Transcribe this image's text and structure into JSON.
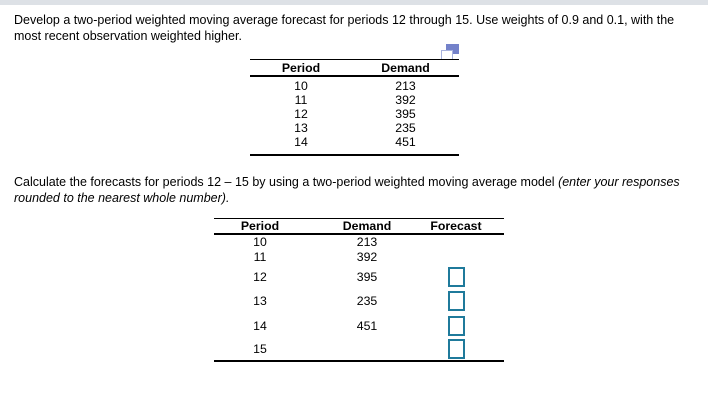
{
  "problem": {
    "statement": "Develop a two-period weighted moving average forecast for periods 12 through 15. Use weights of 0.9 and 0.1, with the most recent observation weighted higher."
  },
  "instruction": {
    "normal": "Calculate the forecasts for periods 12 – 15 by using a two-period weighted moving average model ",
    "italic": "(enter your responses rounded to the nearest whole number)."
  },
  "icons": {
    "copy_table_icon": "copy-table-popout"
  },
  "colors": {
    "answer_box_border": "#1f7a9b",
    "icon_fill": "#7482ca",
    "icon_outline": "#a9b3de",
    "top_bar": "#dde1e6"
  },
  "data_table": {
    "headers": [
      "Period",
      "Demand"
    ],
    "rows": [
      [
        "10",
        "213"
      ],
      [
        "11",
        "392"
      ],
      [
        "12",
        "395"
      ],
      [
        "13",
        "235"
      ],
      [
        "14",
        "451"
      ]
    ]
  },
  "answer_table": {
    "headers": [
      "Period",
      "Demand",
      "Forecast"
    ],
    "rows": [
      [
        "10",
        "213"
      ],
      [
        "11",
        "392"
      ],
      [
        "12",
        "395"
      ],
      [
        "13",
        "235"
      ],
      [
        "14",
        "451"
      ],
      [
        "15",
        ""
      ]
    ],
    "input_value": ""
  }
}
